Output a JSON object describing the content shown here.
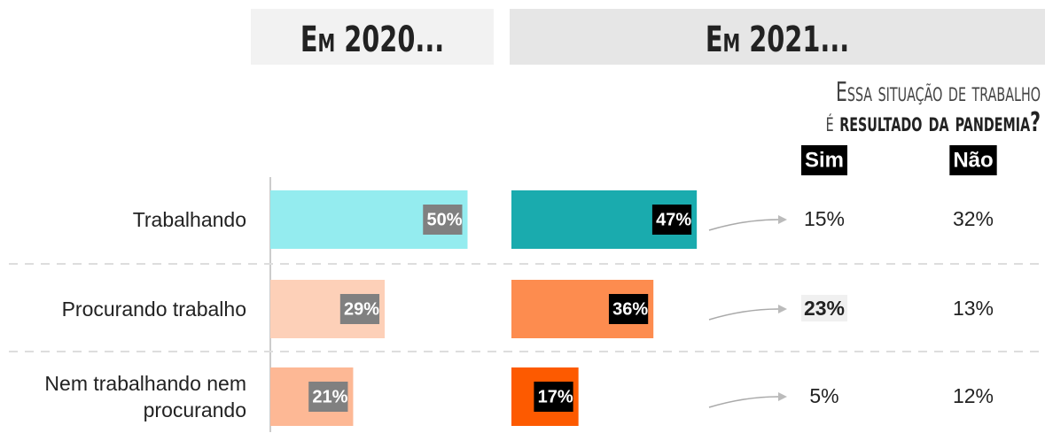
{
  "chart_data": {
    "type": "bar",
    "categories": [
      "Trabalhando",
      "Procurando trabalho",
      "Nem trabalhando nem procurando"
    ],
    "series": [
      {
        "name": "Em 2020...",
        "colors": [
          "#94ecef",
          "#fdd0b8",
          "#fdb895"
        ],
        "label_bg": "#808080",
        "values": [
          50,
          29,
          21
        ],
        "value_labels": [
          "50%",
          "29%",
          "21%"
        ]
      },
      {
        "name": "Em 2021...",
        "colors": [
          "#1aabae",
          "#fd8c4f",
          "#fd5a00"
        ],
        "label_bg": "#000000",
        "values": [
          47,
          36,
          17
        ],
        "value_labels": [
          "47%",
          "36%",
          "17%"
        ]
      }
    ],
    "subtitle": [
      "Essa situação de trabalho",
      "é",
      "resultado da pandemia?"
    ],
    "breakdown": {
      "columns": [
        "Sim",
        "Não"
      ],
      "rows": [
        [
          "15%",
          "32%"
        ],
        [
          "23%",
          "13%"
        ],
        [
          "5%",
          "12%"
        ]
      ],
      "emphasis": [
        1,
        0
      ]
    }
  }
}
